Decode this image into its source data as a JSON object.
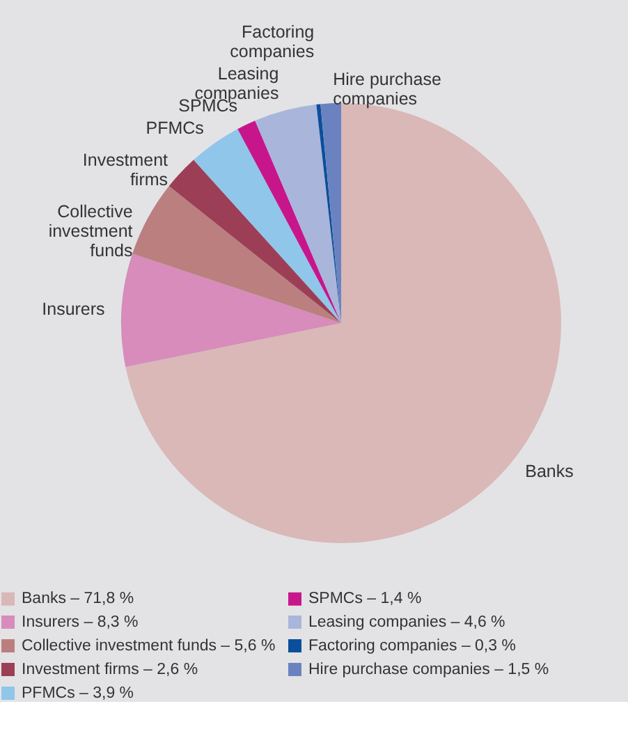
{
  "chart_data": {
    "type": "pie",
    "categories": [
      "Banks – 71,8 %",
      "Insurers – 8,3 %",
      "Collective investment funds – 5,6 %",
      "Investment firms – 2,6 %",
      "PFMCs – 3,9 %",
      "SPMCs – 1,4 %",
      "Leasing companies – 4,6 %",
      "Factoring companies – 0,3 %",
      "Hire purchase companies – 1,5 %"
    ],
    "values": [
      71.8,
      8.3,
      5.6,
      2.6,
      3.9,
      1.4,
      4.6,
      0.3,
      1.5
    ],
    "colors": [
      "#d9b8b7",
      "#d78cbb",
      "#bb7f80",
      "#9c3f56",
      "#8fc6ea",
      "#c7168b",
      "#a9b5da",
      "#0b4f9c",
      "#6a83c0"
    ],
    "annotations": [
      "Banks",
      "Insurers",
      "Collective investment funds",
      "Investment firms",
      "PFMCs",
      "SPMCs",
      "Leasing companies",
      "Factoring companies",
      "Hire purchase companies"
    ],
    "legend": "bottom"
  }
}
